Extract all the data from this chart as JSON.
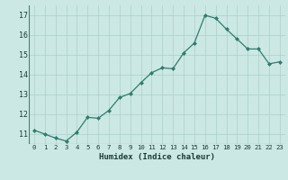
{
  "x": [
    0,
    1,
    2,
    3,
    4,
    5,
    6,
    7,
    8,
    9,
    10,
    11,
    12,
    13,
    14,
    15,
    16,
    17,
    18,
    19,
    20,
    21,
    22,
    23
  ],
  "y": [
    11.2,
    11.0,
    10.8,
    10.65,
    11.1,
    11.85,
    11.8,
    12.2,
    12.85,
    13.05,
    13.6,
    14.1,
    14.35,
    14.3,
    15.1,
    15.6,
    17.0,
    16.85,
    16.3,
    15.8,
    15.3,
    15.3,
    14.55,
    14.65
  ],
  "xlabel": "Humidex (Indice chaleur)",
  "ylim": [
    10.5,
    17.5
  ],
  "xlim": [
    -0.5,
    23.5
  ],
  "yticks": [
    11,
    12,
    13,
    14,
    15,
    16,
    17
  ],
  "xtick_labels": [
    "0",
    "1",
    "2",
    "3",
    "4",
    "5",
    "6",
    "7",
    "8",
    "9",
    "10",
    "11",
    "12",
    "13",
    "14",
    "15",
    "16",
    "17",
    "18",
    "19",
    "20",
    "21",
    "22",
    "23"
  ],
  "line_color": "#2e7d6e",
  "marker_color": "#2e7d6e",
  "bg_color": "#cce8e4",
  "grid_color": "#aacfcb",
  "xlabel_color": "#1a3a36"
}
